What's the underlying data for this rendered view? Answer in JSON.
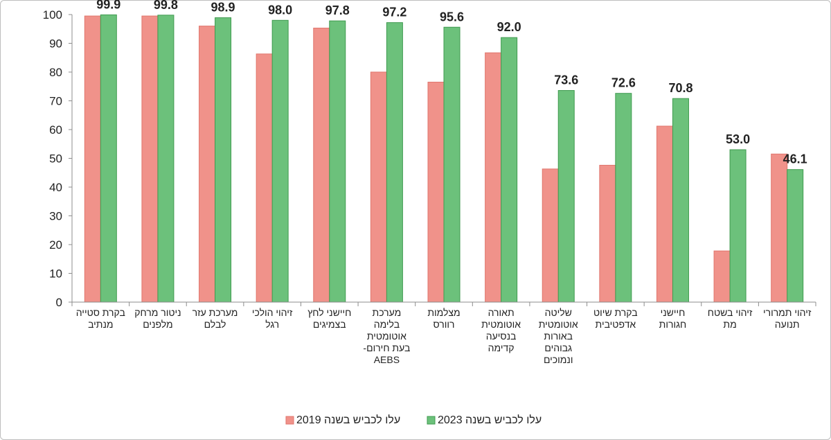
{
  "chart_data": {
    "type": "bar",
    "categories": [
      [
        "בקרת סטייה",
        "מנתיב"
      ],
      [
        "ניטור מרחק",
        "מלפנים"
      ],
      [
        "מערכת עזר",
        "לבלם"
      ],
      [
        "זיהוי הולכי",
        "רגל"
      ],
      [
        "חיישני לחץ",
        "בצמיגים"
      ],
      [
        "מערכת",
        "בלימה",
        "אוטומטית",
        "בעת חירום-",
        "AEBS"
      ],
      [
        "מצלמות",
        "רוורס"
      ],
      [
        "תאורה",
        "אוטומטית",
        "בנסיעה",
        "קדימה"
      ],
      [
        "שליטה",
        "אוטומטית",
        "באורות",
        "גבוהים",
        "ונמוכים"
      ],
      [
        "בקרת שיוט",
        "אדפטיבית"
      ],
      [
        "חיישני",
        "חגורות"
      ],
      [
        "זיהוי בשטח",
        "מת"
      ],
      [
        "זיהוי תמרורי",
        "תנועה"
      ]
    ],
    "series": [
      {
        "name": "עלו לכביש בשנה 2019",
        "color": "#F0928A",
        "values": [
          99.5,
          99.5,
          96.0,
          86.3,
          95.3,
          80.0,
          76.5,
          86.7,
          46.3,
          47.6,
          61.2,
          17.8,
          51.5
        ]
      },
      {
        "name": "עלו לכביש בשנה 2023",
        "color": "#6CC17B",
        "values": [
          99.9,
          99.8,
          98.9,
          98.0,
          97.8,
          97.2,
          95.6,
          92.0,
          73.6,
          72.6,
          70.8,
          53.0,
          46.1
        ]
      }
    ],
    "data_labels": [
      "99.9",
      "99.8",
      "98.9",
      "98.0",
      "97.8",
      "97.2",
      "95.6",
      "92.0",
      "73.6",
      "72.6",
      "70.8",
      "53.0",
      "46.1"
    ],
    "ylim": [
      0,
      100
    ],
    "yticks": [
      "0",
      "10",
      "20",
      "30",
      "40",
      "50",
      "60",
      "70",
      "80",
      "90",
      "100"
    ],
    "grid": false,
    "legend_position": "bottom",
    "title": "",
    "xlabel": "",
    "ylabel": ""
  }
}
